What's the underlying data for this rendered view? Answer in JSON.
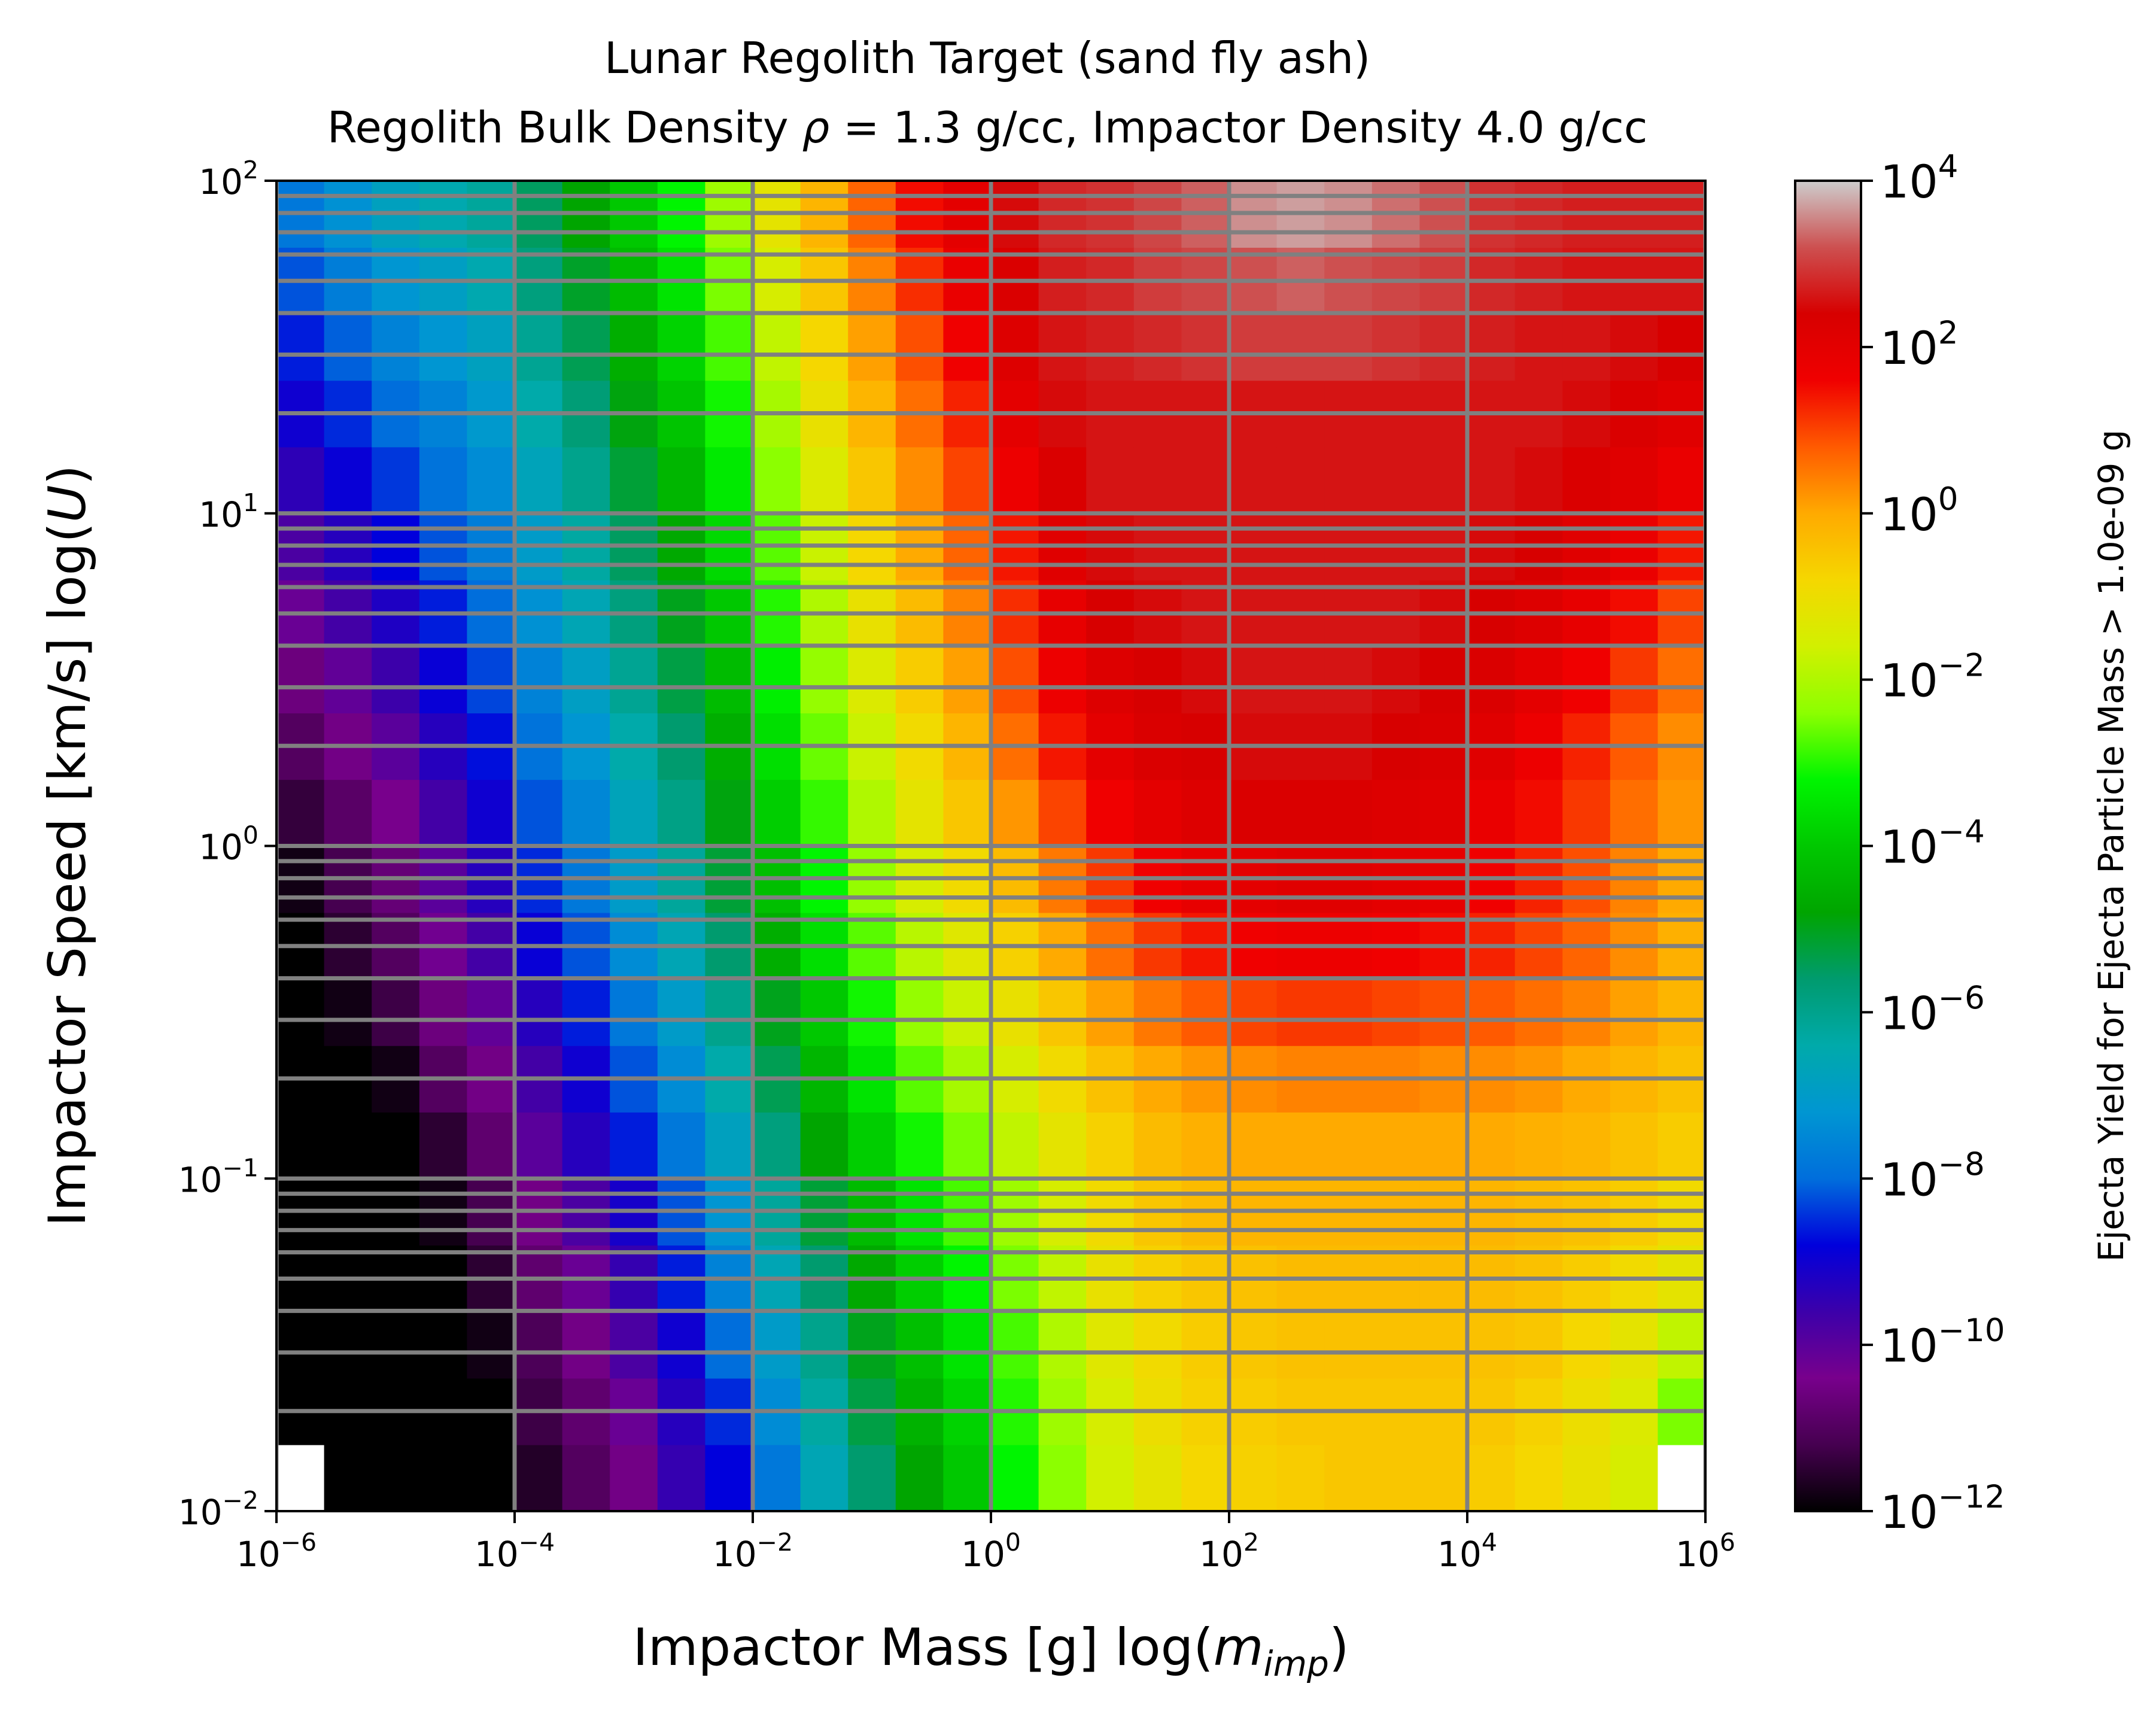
{
  "chart_data": {
    "type": "heatmap",
    "title": "Lunar Regolith Target (sand fly ash)",
    "subtitle_prefix": "Regolith Bulk Density ",
    "subtitle_rho": "ρ",
    "subtitle_eq": " = 1.3 g/cc, Impactor Density 4.0 g/cc",
    "xlabel_prefix": "Impactor Mass [g] log(",
    "xlabel_var": "m",
    "xlabel_sub": "imp",
    "xlabel_suffix": ")",
    "ylabel_prefix": "Impactor Speed [km/s] log(",
    "ylabel_var": "U",
    "ylabel_suffix": ")",
    "colorbar_label": "Ejecta Yield for Ejecta Particle Mass > 1.0e-09 g",
    "x_scale": "log",
    "y_scale": "log",
    "c_scale": "log",
    "xlim": [
      1e-06,
      1000000.0
    ],
    "ylim": [
      0.01,
      100
    ],
    "clim": [
      1e-12,
      10000.0
    ],
    "x_ticks": [
      {
        "base": "10",
        "exp": "−6",
        "value": 1e-06
      },
      {
        "base": "10",
        "exp": "−4",
        "value": 0.0001
      },
      {
        "base": "10",
        "exp": "−2",
        "value": 0.01
      },
      {
        "base": "10",
        "exp": "0",
        "value": 1
      },
      {
        "base": "10",
        "exp": "2",
        "value": 100
      },
      {
        "base": "10",
        "exp": "4",
        "value": 10000
      },
      {
        "base": "10",
        "exp": "6",
        "value": 1000000
      }
    ],
    "y_ticks": [
      {
        "base": "10",
        "exp": "−2",
        "value": 0.01
      },
      {
        "base": "10",
        "exp": "−1",
        "value": 0.1
      },
      {
        "base": "10",
        "exp": "0",
        "value": 1
      },
      {
        "base": "10",
        "exp": "1",
        "value": 10
      },
      {
        "base": "10",
        "exp": "2",
        "value": 100
      }
    ],
    "c_ticks": [
      {
        "base": "10",
        "exp": "4",
        "value": 10000.0
      },
      {
        "base": "10",
        "exp": "2",
        "value": 100.0
      },
      {
        "base": "10",
        "exp": "0",
        "value": 1
      },
      {
        "base": "10",
        "exp": "−2",
        "value": 0.01
      },
      {
        "base": "10",
        "exp": "−4",
        "value": 0.0001
      },
      {
        "base": "10",
        "exp": "−6",
        "value": 1e-06
      },
      {
        "base": "10",
        "exp": "−8",
        "value": 1e-08
      },
      {
        "base": "10",
        "exp": "−10",
        "value": 1e-10
      },
      {
        "base": "10",
        "exp": "−12",
        "value": 1e-12
      }
    ],
    "colormap": "nipy_spectral",
    "grid": true,
    "grid_color": "#808080",
    "nodata_color": "#ffffff",
    "x_bin_edges_log10": [
      -6.0,
      -5.6,
      -5.2,
      -4.8,
      -4.4,
      -4.0,
      -3.6,
      -3.2,
      -2.8,
      -2.4,
      -2.0,
      -1.6,
      -1.2,
      -0.8,
      -0.4,
      0.0,
      0.4,
      0.8,
      1.2,
      1.6,
      2.0,
      2.4,
      2.8,
      3.2,
      3.6,
      4.0,
      4.4,
      4.8,
      5.2,
      5.6,
      6.0
    ],
    "y_bin_edges_log10": [
      -2.0,
      -1.8,
      -1.6,
      -1.4,
      -1.2,
      -1.0,
      -0.8,
      -0.6,
      -0.4,
      -0.2,
      0.0,
      0.2,
      0.4,
      0.6,
      0.8,
      1.0,
      1.2,
      1.4,
      1.6,
      1.8,
      2.0
    ],
    "extra_gridlines_y": [
      0.02,
      0.03,
      0.04,
      0.05,
      0.06,
      0.07,
      0.08,
      0.09,
      0.1,
      0.2,
      0.3,
      0.4,
      0.5,
      0.6,
      0.7,
      0.8,
      0.9,
      1,
      2,
      3,
      4,
      5,
      6,
      7,
      8,
      9,
      10,
      20,
      30,
      40,
      50,
      60,
      70,
      80,
      90
    ],
    "extra_gridlines_x": [
      1e-06,
      0.0001,
      0.01,
      1,
      100,
      10000,
      1000000
    ],
    "z_log10": [
      [
        null,
        -12,
        -12,
        -12,
        -12,
        -11.6,
        -11.0,
        -10.5,
        -9.5,
        -8.8,
        -7.8,
        -6.6,
        -5.6,
        -4.8,
        -4.0,
        -3.2,
        -2.4,
        -1.6,
        -1.2,
        -0.8,
        -0.7,
        -0.6,
        -0.5,
        -0.5,
        -0.5,
        -0.6,
        -0.8,
        -1.1,
        -1.5,
        null
      ],
      [
        -12,
        -12,
        -12,
        -12,
        -12,
        -11.3,
        -10.8,
        -10.2,
        -9.3,
        -8.5,
        -7.4,
        -6.3,
        -5.3,
        -4.5,
        -3.8,
        -3.0,
        -2.2,
        -1.5,
        -1.0,
        -0.7,
        -0.6,
        -0.5,
        -0.5,
        -0.5,
        -0.5,
        -0.5,
        -0.7,
        -1.0,
        -1.4,
        -2.5
      ],
      [
        -12,
        -12,
        -12,
        -12,
        -11.8,
        -11.1,
        -10.5,
        -9.8,
        -9.0,
        -8.0,
        -7.0,
        -6.0,
        -5.0,
        -4.2,
        -3.5,
        -2.8,
        -2.0,
        -1.3,
        -0.9,
        -0.6,
        -0.5,
        -0.4,
        -0.4,
        -0.4,
        -0.4,
        -0.4,
        -0.5,
        -0.8,
        -1.2,
        -1.8
      ],
      [
        -12,
        -12,
        -12,
        -12,
        -11.5,
        -10.8,
        -10.2,
        -9.5,
        -8.6,
        -7.6,
        -6.6,
        -5.6,
        -4.7,
        -3.9,
        -3.2,
        -2.5,
        -1.8,
        -1.1,
        -0.7,
        -0.5,
        -0.4,
        -0.3,
        -0.3,
        -0.3,
        -0.3,
        -0.3,
        -0.4,
        -0.6,
        -0.9,
        -1.2
      ],
      [
        -12,
        -12,
        -12,
        -11.8,
        -11.2,
        -10.5,
        -9.8,
        -9.1,
        -8.2,
        -7.2,
        -6.2,
        -5.2,
        -4.3,
        -3.5,
        -2.8,
        -2.2,
        -1.5,
        -0.9,
        -0.5,
        -0.3,
        -0.2,
        -0.2,
        -0.2,
        -0.2,
        -0.2,
        -0.2,
        -0.3,
        -0.4,
        -0.6,
        -0.9
      ],
      [
        -12,
        -12,
        -12,
        -11.5,
        -10.8,
        -10.0,
        -9.3,
        -8.6,
        -7.8,
        -6.8,
        -5.8,
        -4.8,
        -3.9,
        -3.1,
        -2.5,
        -1.8,
        -1.2,
        -0.7,
        -0.3,
        -0.1,
        0.0,
        0.0,
        0.0,
        0.0,
        0.0,
        0.0,
        -0.1,
        -0.2,
        -0.4,
        -0.6
      ],
      [
        -12,
        -12,
        -11.8,
        -11.0,
        -10.5,
        -9.7,
        -9.0,
        -8.2,
        -7.4,
        -6.4,
        -5.4,
        -4.4,
        -3.5,
        -2.7,
        -2.1,
        -1.5,
        -0.9,
        -0.4,
        0.0,
        0.2,
        0.3,
        0.4,
        0.4,
        0.4,
        0.3,
        0.3,
        0.2,
        0.0,
        -0.2,
        -0.4
      ],
      [
        -12,
        -11.8,
        -11.3,
        -10.6,
        -10.1,
        -9.3,
        -8.6,
        -7.8,
        -7.0,
        -6.0,
        -5.0,
        -4.0,
        -3.1,
        -2.3,
        -1.7,
        -1.1,
        -0.5,
        0.1,
        0.5,
        0.8,
        1.0,
        1.1,
        1.1,
        1.0,
        0.9,
        0.8,
        0.6,
        0.4,
        0.1,
        -0.2
      ],
      [
        -12,
        -11.5,
        -11.0,
        -10.3,
        -9.7,
        -8.9,
        -8.2,
        -7.4,
        -6.6,
        -5.6,
        -4.6,
        -3.6,
        -2.7,
        -1.9,
        -1.3,
        -0.7,
        0.0,
        0.6,
        1.1,
        1.4,
        1.6,
        1.7,
        1.7,
        1.6,
        1.5,
        1.3,
        1.0,
        0.7,
        0.3,
        -0.1
      ],
      [
        -11.8,
        -11.2,
        -10.7,
        -10.0,
        -9.3,
        -8.5,
        -7.8,
        -7.0,
        -6.2,
        -5.2,
        -4.2,
        -3.2,
        -2.3,
        -1.5,
        -0.9,
        -0.3,
        0.5,
        1.1,
        1.6,
        1.9,
        2.0,
        2.1,
        2.1,
        2.0,
        1.9,
        1.6,
        1.3,
        0.9,
        0.4,
        0.0
      ],
      [
        -11.4,
        -10.9,
        -10.4,
        -9.7,
        -9.0,
        -8.2,
        -7.5,
        -6.7,
        -5.9,
        -4.9,
        -3.9,
        -2.9,
        -2.0,
        -1.2,
        -0.5,
        0.2,
        1.0,
        1.6,
        2.0,
        2.2,
        2.3,
        2.3,
        2.3,
        2.2,
        2.1,
        1.8,
        1.5,
        1.1,
        0.6,
        0.2
      ],
      [
        -11.0,
        -10.5,
        -10.0,
        -9.3,
        -8.7,
        -7.9,
        -7.2,
        -6.4,
        -5.6,
        -4.6,
        -3.6,
        -2.6,
        -1.7,
        -0.9,
        -0.2,
        0.6,
        1.4,
        2.0,
        2.3,
        2.4,
        2.5,
        2.5,
        2.5,
        2.4,
        2.3,
        2.1,
        1.7,
        1.3,
        0.8,
        0.3
      ],
      [
        -10.6,
        -10.1,
        -9.6,
        -8.9,
        -8.3,
        -7.6,
        -6.9,
        -6.1,
        -5.3,
        -4.3,
        -3.3,
        -2.3,
        -1.4,
        -0.6,
        0.1,
        0.9,
        1.7,
        2.2,
        2.4,
        2.5,
        2.6,
        2.6,
        2.6,
        2.5,
        2.4,
        2.3,
        2.0,
        1.6,
        1.1,
        0.6
      ],
      [
        -10.2,
        -9.7,
        -9.2,
        -8.6,
        -8.0,
        -7.3,
        -6.6,
        -5.8,
        -5.0,
        -4.0,
        -3.0,
        -2.0,
        -1.1,
        -0.3,
        0.4,
        1.2,
        1.9,
        2.4,
        2.5,
        2.6,
        2.6,
        2.6,
        2.6,
        2.6,
        2.5,
        2.4,
        2.2,
        1.9,
        1.5,
        1.0
      ],
      [
        -9.8,
        -9.3,
        -8.8,
        -8.2,
        -7.7,
        -7.0,
        -6.3,
        -5.5,
        -4.7,
        -3.7,
        -2.7,
        -1.7,
        -0.8,
        0.0,
        0.7,
        1.4,
        2.1,
        2.5,
        2.6,
        2.6,
        2.6,
        2.6,
        2.6,
        2.6,
        2.6,
        2.5,
        2.4,
        2.1,
        1.8,
        1.4
      ],
      [
        -9.4,
        -8.9,
        -8.4,
        -7.9,
        -7.4,
        -6.7,
        -6.0,
        -5.2,
        -4.4,
        -3.4,
        -2.4,
        -1.4,
        -0.5,
        0.3,
        1.0,
        1.7,
        2.3,
        2.6,
        2.6,
        2.6,
        2.6,
        2.6,
        2.6,
        2.6,
        2.6,
        2.6,
        2.5,
        2.3,
        2.1,
        1.8
      ],
      [
        -9.0,
        -8.5,
        -8.0,
        -7.6,
        -7.1,
        -6.4,
        -5.7,
        -4.9,
        -4.1,
        -3.1,
        -2.1,
        -1.1,
        -0.2,
        0.6,
        1.3,
        2.0,
        2.5,
        2.6,
        2.6,
        2.6,
        2.6,
        2.6,
        2.6,
        2.6,
        2.6,
        2.6,
        2.6,
        2.5,
        2.3,
        2.1
      ],
      [
        -8.6,
        -8.1,
        -7.6,
        -7.2,
        -6.8,
        -6.1,
        -5.4,
        -4.6,
        -3.8,
        -2.8,
        -1.8,
        -0.8,
        0.1,
        0.9,
        1.6,
        2.2,
        2.6,
        2.7,
        2.8,
        2.9,
        3.0,
        3.0,
        3.0,
        2.9,
        2.8,
        2.7,
        2.6,
        2.6,
        2.5,
        2.4
      ],
      [
        -8.2,
        -7.7,
        -7.2,
        -6.9,
        -6.5,
        -5.8,
        -5.1,
        -4.3,
        -3.5,
        -2.5,
        -1.5,
        -0.5,
        0.4,
        1.2,
        1.8,
        2.3,
        2.7,
        2.8,
        3.0,
        3.1,
        3.2,
        3.3,
        3.2,
        3.1,
        3.0,
        2.8,
        2.7,
        2.6,
        2.6,
        2.6
      ],
      [
        -7.8,
        -7.3,
        -6.8,
        -6.5,
        -6.2,
        -5.5,
        -4.8,
        -4.0,
        -3.2,
        -2.2,
        -1.2,
        -0.2,
        0.7,
        1.5,
        2.0,
        2.5,
        2.8,
        2.9,
        3.1,
        3.3,
        3.6,
        3.7,
        3.6,
        3.4,
        3.2,
        2.9,
        2.8,
        2.7,
        2.7,
        2.7
      ]
    ]
  }
}
